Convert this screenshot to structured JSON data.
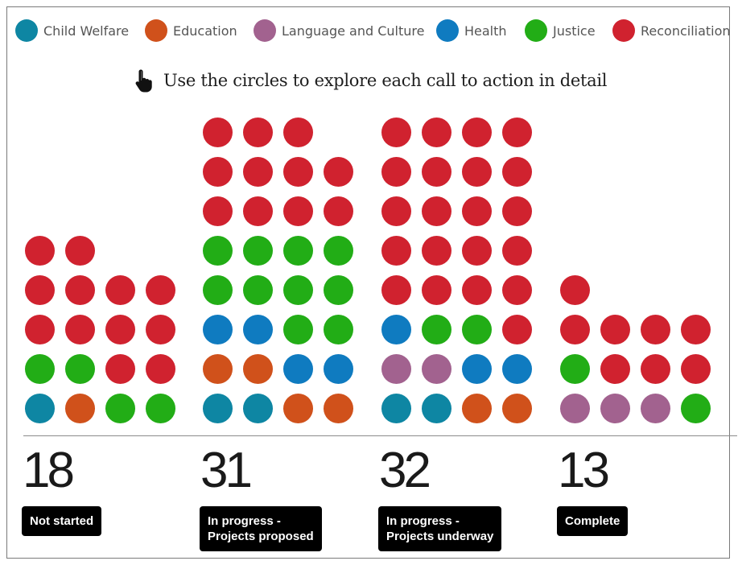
{
  "legend": [
    {
      "label": "Child Welfare",
      "color": "#0e86a3"
    },
    {
      "label": "Education",
      "color": "#d0511b"
    },
    {
      "label": "Language and Culture",
      "color": "#a2628f"
    },
    {
      "label": "Health",
      "color": "#0f7bc0"
    },
    {
      "label": "Justice",
      "color": "#22ad16"
    },
    {
      "label": "Reconciliation",
      "color": "#d0222f"
    }
  ],
  "instruction": {
    "text": "Use the circles to explore each call to action in detail",
    "icon": "pointing-hand-icon"
  },
  "chart_data": {
    "type": "waffle",
    "title": "",
    "categories": [
      "Child Welfare",
      "Education",
      "Language and Culture",
      "Health",
      "Justice",
      "Reconciliation"
    ],
    "columns": [
      {
        "count": "18",
        "label": "Not started",
        "rows": [
          [
            "Child Welfare",
            "Education",
            "Justice",
            "Justice"
          ],
          [
            "Justice",
            "Justice",
            "Reconciliation",
            "Reconciliation"
          ],
          [
            "Reconciliation",
            "Reconciliation",
            "Reconciliation",
            "Reconciliation"
          ],
          [
            "Reconciliation",
            "Reconciliation",
            "Reconciliation",
            "Reconciliation"
          ],
          [
            "Reconciliation",
            "Reconciliation"
          ]
        ]
      },
      {
        "count": "31",
        "label": "In progress -\nProjects proposed",
        "rows": [
          [
            "Child Welfare",
            "Child Welfare",
            "Education",
            "Education"
          ],
          [
            "Education",
            "Education",
            "Health",
            "Health"
          ],
          [
            "Health",
            "Health",
            "Justice",
            "Justice"
          ],
          [
            "Justice",
            "Justice",
            "Justice",
            "Justice"
          ],
          [
            "Justice",
            "Justice",
            "Justice",
            "Justice"
          ],
          [
            "Reconciliation",
            "Reconciliation",
            "Reconciliation",
            "Reconciliation"
          ],
          [
            "Reconciliation",
            "Reconciliation",
            "Reconciliation",
            "Reconciliation"
          ],
          [
            "Reconciliation",
            "Reconciliation",
            "Reconciliation"
          ]
        ]
      },
      {
        "count": "32",
        "label": "In progress -\nProjects underway",
        "rows": [
          [
            "Child Welfare",
            "Child Welfare",
            "Education",
            "Education"
          ],
          [
            "Language and Culture",
            "Language and Culture",
            "Health",
            "Health"
          ],
          [
            "Health",
            "Justice",
            "Justice",
            "Reconciliation"
          ],
          [
            "Reconciliation",
            "Reconciliation",
            "Reconciliation",
            "Reconciliation"
          ],
          [
            "Reconciliation",
            "Reconciliation",
            "Reconciliation",
            "Reconciliation"
          ],
          [
            "Reconciliation",
            "Reconciliation",
            "Reconciliation",
            "Reconciliation"
          ],
          [
            "Reconciliation",
            "Reconciliation",
            "Reconciliation",
            "Reconciliation"
          ],
          [
            "Reconciliation",
            "Reconciliation",
            "Reconciliation",
            "Reconciliation"
          ]
        ]
      },
      {
        "count": "13",
        "label": "Complete",
        "rows": [
          [
            "Language and Culture",
            "Language and Culture",
            "Language and Culture",
            "Justice"
          ],
          [
            "Justice",
            "Reconciliation",
            "Reconciliation",
            "Reconciliation"
          ],
          [
            "Reconciliation",
            "Reconciliation",
            "Reconciliation",
            "Reconciliation"
          ],
          [
            "Reconciliation"
          ]
        ]
      }
    ]
  }
}
